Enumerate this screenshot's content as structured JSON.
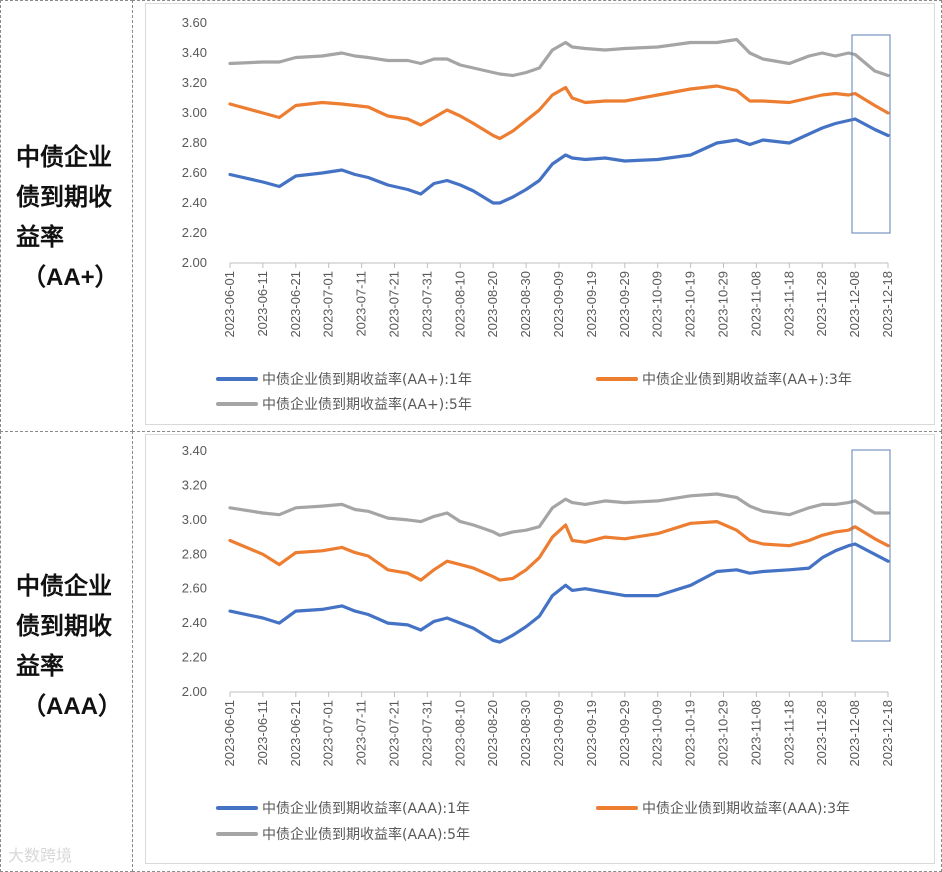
{
  "charts": [
    {
      "label_lines": [
        "中债企业",
        "债到期收",
        "益率",
        "（AA+）"
      ],
      "chart_data": {
        "type": "line",
        "ylim": [
          2.0,
          3.6
        ],
        "yticks": [
          "2.00",
          "2.20",
          "2.40",
          "2.60",
          "2.80",
          "3.00",
          "3.20",
          "3.40",
          "3.60"
        ],
        "xticks": [
          "2023-06-01",
          "2023-06-11",
          "2023-06-21",
          "2023-07-01",
          "2023-07-11",
          "2023-07-21",
          "2023-07-31",
          "2023-08-10",
          "2023-08-20",
          "2023-08-30",
          "2023-09-09",
          "2023-09-19",
          "2023-09-29",
          "2023-10-09",
          "2023-10-19",
          "2023-10-29",
          "2023-11-08",
          "2023-11-18",
          "2023-11-28",
          "2023-12-08",
          "2023-12-18"
        ],
        "x_days": [
          0,
          10,
          15,
          20,
          28,
          34,
          38,
          42,
          48,
          54,
          58,
          62,
          66,
          70,
          74,
          80,
          82,
          86,
          90,
          94,
          98,
          102,
          104,
          108,
          114,
          120,
          130,
          140,
          148,
          154,
          158,
          162,
          170,
          176,
          180,
          184,
          188,
          190,
          196,
          200
        ],
        "series": [
          {
            "name": "中债企业债到期收益率(AA+):1年",
            "color": "#4472C4",
            "values": [
              2.59,
              2.54,
              2.51,
              2.58,
              2.6,
              2.62,
              2.59,
              2.57,
              2.52,
              2.49,
              2.46,
              2.53,
              2.55,
              2.52,
              2.48,
              2.4,
              2.4,
              2.44,
              2.49,
              2.55,
              2.66,
              2.72,
              2.7,
              2.69,
              2.7,
              2.68,
              2.69,
              2.72,
              2.8,
              2.82,
              2.79,
              2.82,
              2.8,
              2.86,
              2.9,
              2.93,
              2.95,
              2.96,
              2.89,
              2.85
            ]
          },
          {
            "name": "中债企业债到期收益率(AA+):3年",
            "color": "#ED7D31",
            "values": [
              3.06,
              3.0,
              2.97,
              3.05,
              3.07,
              3.06,
              3.05,
              3.04,
              2.98,
              2.96,
              2.92,
              2.97,
              3.02,
              2.98,
              2.93,
              2.85,
              2.83,
              2.88,
              2.95,
              3.02,
              3.12,
              3.17,
              3.1,
              3.07,
              3.08,
              3.08,
              3.12,
              3.16,
              3.18,
              3.15,
              3.08,
              3.08,
              3.07,
              3.1,
              3.12,
              3.13,
              3.12,
              3.13,
              3.05,
              3.0
            ]
          },
          {
            "name": "中债企业债到期收益率(AA+):5年",
            "color": "#A5A5A5",
            "values": [
              3.33,
              3.34,
              3.34,
              3.37,
              3.38,
              3.4,
              3.38,
              3.37,
              3.35,
              3.35,
              3.33,
              3.36,
              3.36,
              3.32,
              3.3,
              3.27,
              3.26,
              3.25,
              3.27,
              3.3,
              3.42,
              3.47,
              3.44,
              3.43,
              3.42,
              3.43,
              3.44,
              3.47,
              3.47,
              3.49,
              3.4,
              3.36,
              3.33,
              3.38,
              3.4,
              3.38,
              3.4,
              3.39,
              3.28,
              3.25
            ]
          }
        ]
      }
    },
    {
      "label_lines": [
        "中债企业",
        "债到期收",
        "益率",
        "（AAA）"
      ],
      "chart_data": {
        "type": "line",
        "ylim": [
          2.0,
          3.4
        ],
        "yticks": [
          "2.00",
          "2.20",
          "2.40",
          "2.60",
          "2.80",
          "3.00",
          "3.20",
          "3.40"
        ],
        "xticks": [
          "2023-06-01",
          "2023-06-11",
          "2023-06-21",
          "2023-07-01",
          "2023-07-11",
          "2023-07-21",
          "2023-07-31",
          "2023-08-10",
          "2023-08-20",
          "2023-08-30",
          "2023-09-09",
          "2023-09-19",
          "2023-09-29",
          "2023-10-09",
          "2023-10-19",
          "2023-10-29",
          "2023-11-08",
          "2023-11-18",
          "2023-11-28",
          "2023-12-08",
          "2023-12-18"
        ],
        "x_days": [
          0,
          10,
          15,
          20,
          28,
          34,
          38,
          42,
          48,
          54,
          58,
          62,
          66,
          70,
          74,
          80,
          82,
          86,
          90,
          94,
          98,
          102,
          104,
          108,
          114,
          120,
          130,
          140,
          148,
          154,
          158,
          162,
          170,
          176,
          180,
          184,
          188,
          190,
          196,
          200
        ],
        "series": [
          {
            "name": "中债企业债到期收益率(AAA):1年",
            "color": "#4472C4",
            "values": [
              2.47,
              2.43,
              2.4,
              2.47,
              2.48,
              2.5,
              2.47,
              2.45,
              2.4,
              2.39,
              2.36,
              2.41,
              2.43,
              2.4,
              2.37,
              2.3,
              2.29,
              2.33,
              2.38,
              2.44,
              2.56,
              2.62,
              2.59,
              2.6,
              2.58,
              2.56,
              2.56,
              2.62,
              2.7,
              2.71,
              2.69,
              2.7,
              2.71,
              2.72,
              2.78,
              2.82,
              2.85,
              2.86,
              2.8,
              2.76
            ]
          },
          {
            "name": "中债企业债到期收益率(AAA):3年",
            "color": "#ED7D31",
            "values": [
              2.88,
              2.8,
              2.74,
              2.81,
              2.82,
              2.84,
              2.81,
              2.79,
              2.71,
              2.69,
              2.65,
              2.71,
              2.76,
              2.74,
              2.72,
              2.67,
              2.65,
              2.66,
              2.71,
              2.78,
              2.9,
              2.97,
              2.88,
              2.87,
              2.9,
              2.89,
              2.92,
              2.98,
              2.99,
              2.94,
              2.88,
              2.86,
              2.85,
              2.88,
              2.91,
              2.93,
              2.94,
              2.96,
              2.89,
              2.85
            ]
          },
          {
            "name": "中债企业债到期收益率(AAA):5年",
            "color": "#A5A5A5",
            "values": [
              3.07,
              3.04,
              3.03,
              3.07,
              3.08,
              3.09,
              3.06,
              3.05,
              3.01,
              3.0,
              2.99,
              3.02,
              3.04,
              2.99,
              2.97,
              2.93,
              2.91,
              2.93,
              2.94,
              2.96,
              3.07,
              3.12,
              3.1,
              3.09,
              3.11,
              3.1,
              3.11,
              3.14,
              3.15,
              3.13,
              3.08,
              3.05,
              3.03,
              3.07,
              3.09,
              3.09,
              3.1,
              3.11,
              3.04,
              3.04
            ]
          }
        ]
      }
    }
  ],
  "watermark": "大数跨境"
}
